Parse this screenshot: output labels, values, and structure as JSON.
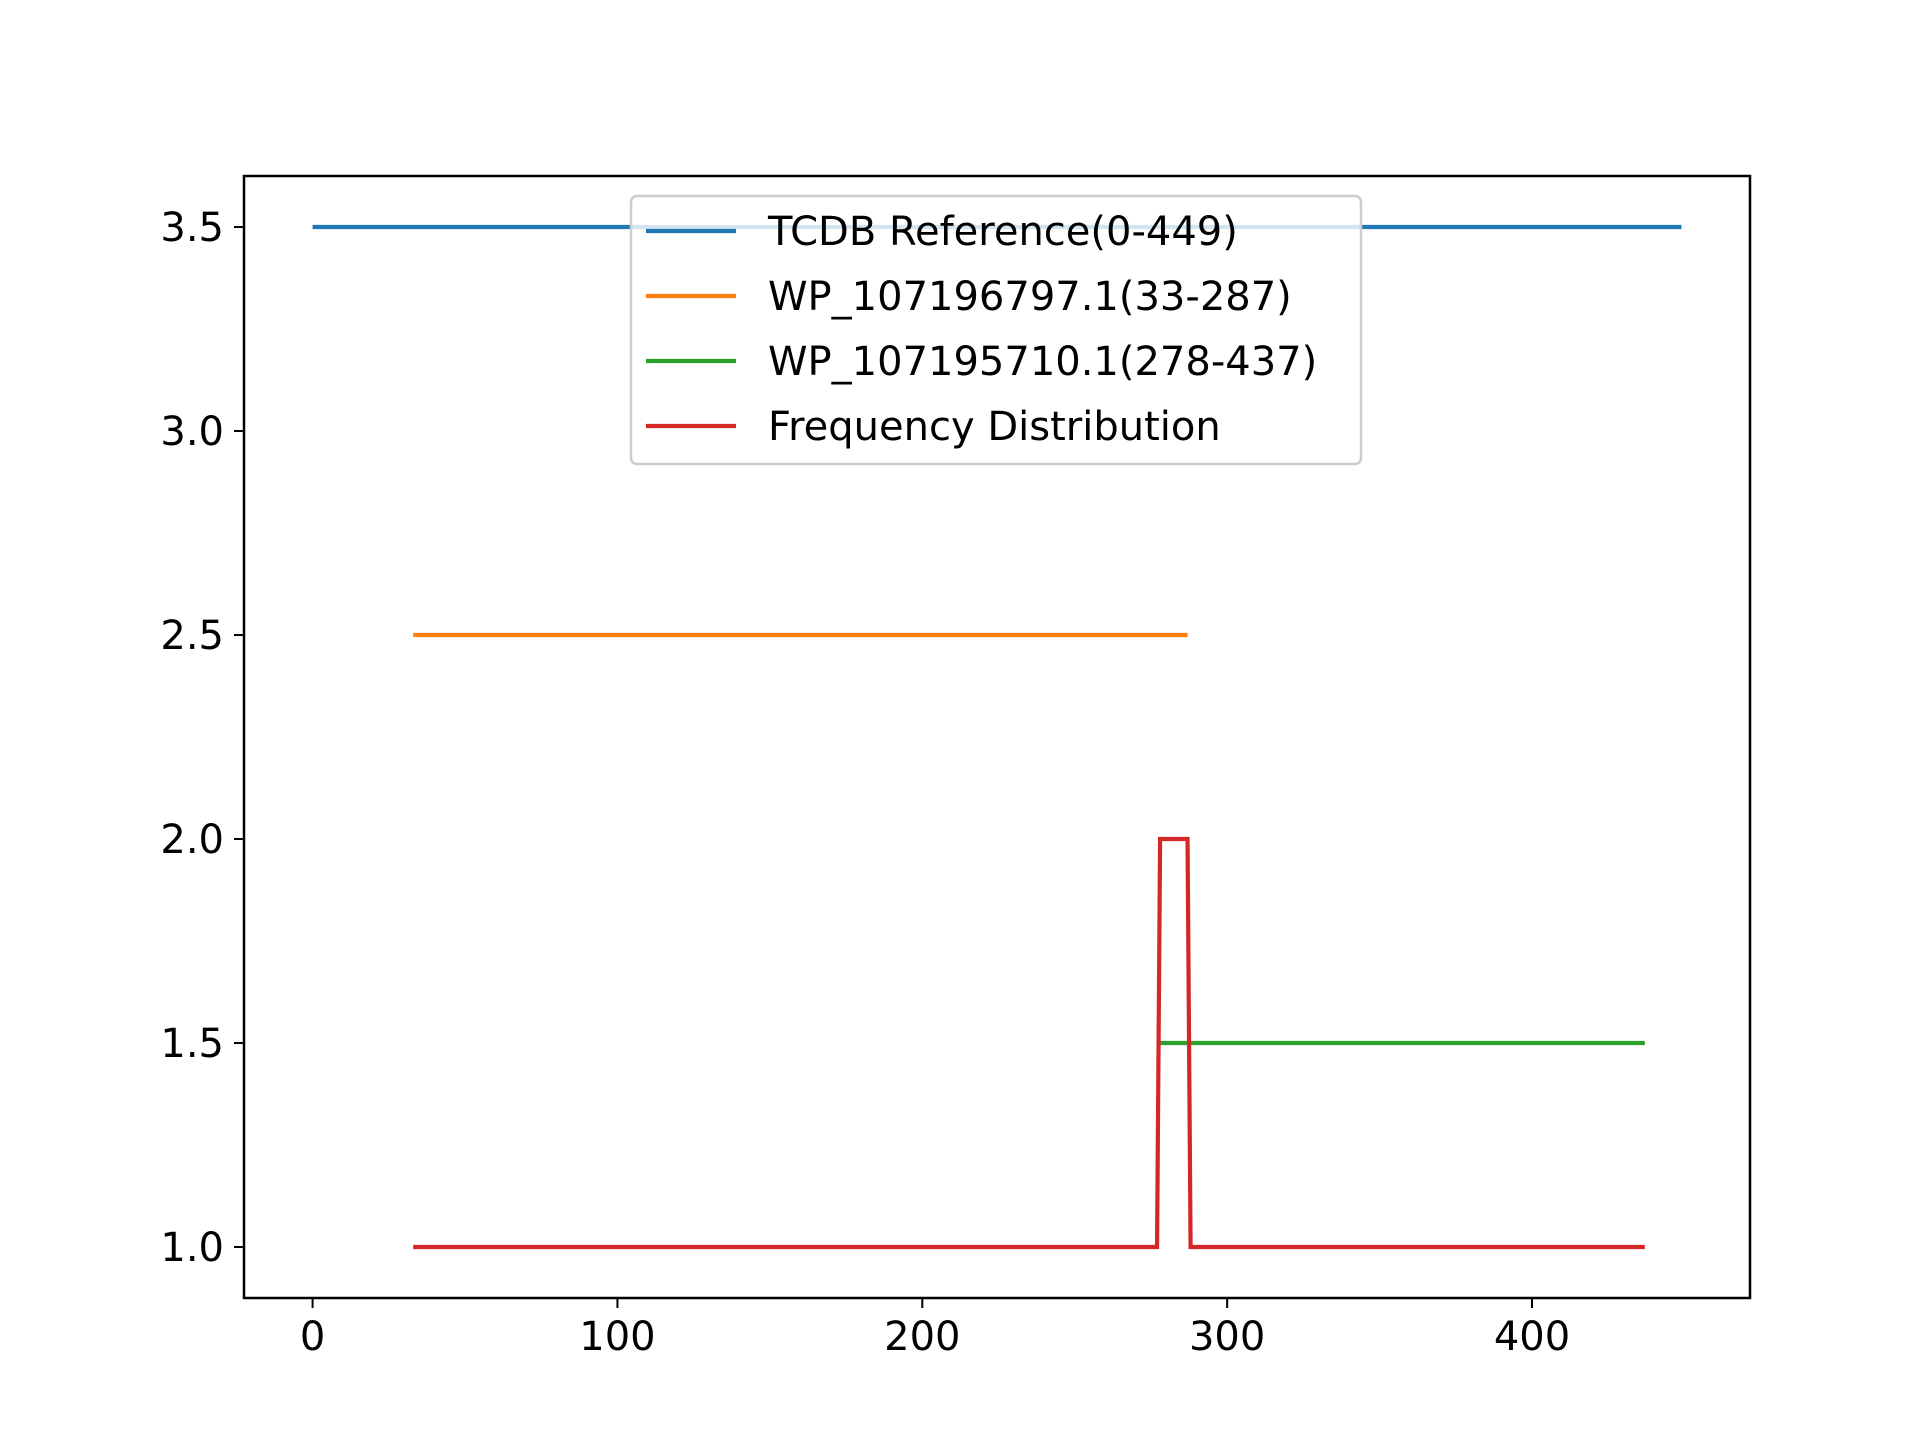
{
  "chart_data": {
    "type": "line",
    "title": "",
    "xlabel": "",
    "ylabel": "",
    "xlim": [
      -22.5,
      471.5
    ],
    "ylim": [
      0.875,
      3.625
    ],
    "xticks": [
      0,
      100,
      200,
      300,
      400
    ],
    "yticks": [
      1.0,
      1.5,
      2.0,
      2.5,
      3.0,
      3.5
    ],
    "xtick_labels": [
      "0",
      "100",
      "200",
      "300",
      "400"
    ],
    "ytick_labels": [
      "1.0",
      "1.5",
      "2.0",
      "2.5",
      "3.0",
      "3.5"
    ],
    "grid": false,
    "legend_position": "upper-center",
    "series": [
      {
        "name": "TCDB Reference(0-449)",
        "color": "#1f77b4",
        "x": [
          0,
          449
        ],
        "y": [
          3.5,
          3.5
        ]
      },
      {
        "name": "WP_107196797.1(33-287)",
        "color": "#ff7f0e",
        "x": [
          33,
          287
        ],
        "y": [
          2.5,
          2.5
        ]
      },
      {
        "name": "WP_107195710.1(278-437)",
        "color": "#2ca02c",
        "x": [
          278,
          437
        ],
        "y": [
          1.5,
          1.5
        ]
      },
      {
        "name": "Frequency Distribution",
        "color": "#d62728",
        "x": [
          33,
          277,
          278,
          287,
          288,
          437
        ],
        "y": [
          1,
          1,
          2,
          2,
          1,
          1
        ]
      }
    ]
  }
}
